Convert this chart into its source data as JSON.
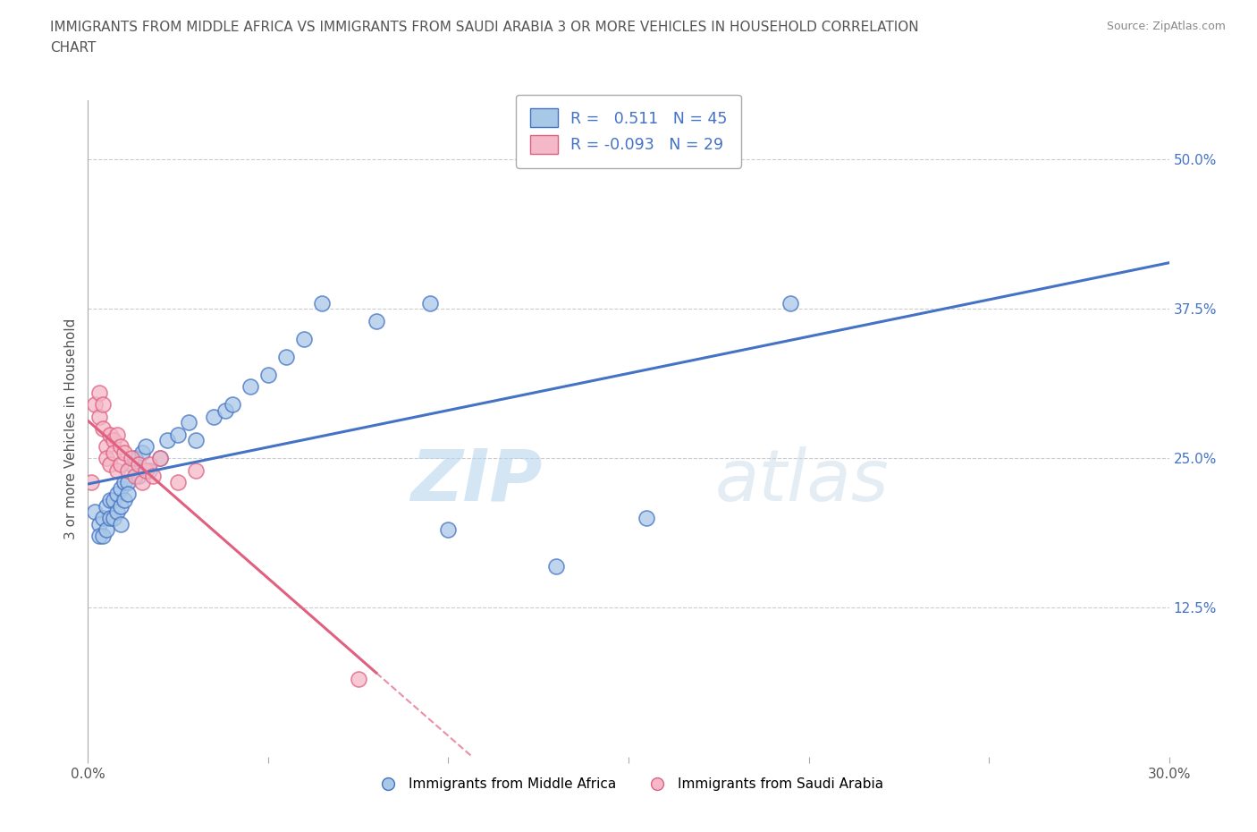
{
  "title_line1": "IMMIGRANTS FROM MIDDLE AFRICA VS IMMIGRANTS FROM SAUDI ARABIA 3 OR MORE VEHICLES IN HOUSEHOLD CORRELATION",
  "title_line2": "CHART",
  "source": "Source: ZipAtlas.com",
  "ylabel": "3 or more Vehicles in Household",
  "xlim": [
    0.0,
    0.3
  ],
  "ylim": [
    0.0,
    0.55
  ],
  "xticks": [
    0.0,
    0.05,
    0.1,
    0.15,
    0.2,
    0.25,
    0.3
  ],
  "xticklabels": [
    "0.0%",
    "",
    "",
    "",
    "",
    "",
    "30.0%"
  ],
  "ytick_positions": [
    0.125,
    0.25,
    0.375,
    0.5
  ],
  "yticklabels_right": [
    "12.5%",
    "25.0%",
    "37.5%",
    "50.0%"
  ],
  "R_blue": 0.511,
  "N_blue": 45,
  "R_pink": -0.093,
  "N_pink": 29,
  "blue_color": "#a8c8e8",
  "pink_color": "#f4b8c8",
  "blue_line_color": "#4472c4",
  "pink_line_color": "#e06080",
  "grid_color": "#cccccc",
  "watermark": "ZIPatlas",
  "blue_scatter_x": [
    0.002,
    0.003,
    0.003,
    0.004,
    0.004,
    0.005,
    0.005,
    0.006,
    0.006,
    0.007,
    0.007,
    0.008,
    0.008,
    0.009,
    0.009,
    0.009,
    0.01,
    0.01,
    0.011,
    0.011,
    0.012,
    0.013,
    0.014,
    0.015,
    0.016,
    0.017,
    0.02,
    0.022,
    0.025,
    0.028,
    0.03,
    0.035,
    0.038,
    0.04,
    0.045,
    0.05,
    0.055,
    0.06,
    0.065,
    0.08,
    0.095,
    0.1,
    0.13,
    0.155,
    0.195
  ],
  "blue_scatter_y": [
    0.205,
    0.195,
    0.185,
    0.2,
    0.185,
    0.21,
    0.19,
    0.215,
    0.2,
    0.215,
    0.2,
    0.22,
    0.205,
    0.225,
    0.21,
    0.195,
    0.23,
    0.215,
    0.23,
    0.22,
    0.245,
    0.25,
    0.235,
    0.255,
    0.26,
    0.24,
    0.25,
    0.265,
    0.27,
    0.28,
    0.265,
    0.285,
    0.29,
    0.295,
    0.31,
    0.32,
    0.335,
    0.35,
    0.38,
    0.365,
    0.38,
    0.19,
    0.16,
    0.2,
    0.38
  ],
  "pink_scatter_x": [
    0.001,
    0.002,
    0.003,
    0.003,
    0.004,
    0.004,
    0.005,
    0.005,
    0.006,
    0.006,
    0.007,
    0.007,
    0.008,
    0.008,
    0.009,
    0.009,
    0.01,
    0.011,
    0.012,
    0.013,
    0.014,
    0.015,
    0.016,
    0.017,
    0.018,
    0.02,
    0.025,
    0.03,
    0.075
  ],
  "pink_scatter_y": [
    0.23,
    0.295,
    0.305,
    0.285,
    0.275,
    0.295,
    0.26,
    0.25,
    0.27,
    0.245,
    0.265,
    0.255,
    0.27,
    0.24,
    0.26,
    0.245,
    0.255,
    0.24,
    0.25,
    0.235,
    0.245,
    0.23,
    0.24,
    0.245,
    0.235,
    0.25,
    0.23,
    0.24,
    0.065
  ]
}
